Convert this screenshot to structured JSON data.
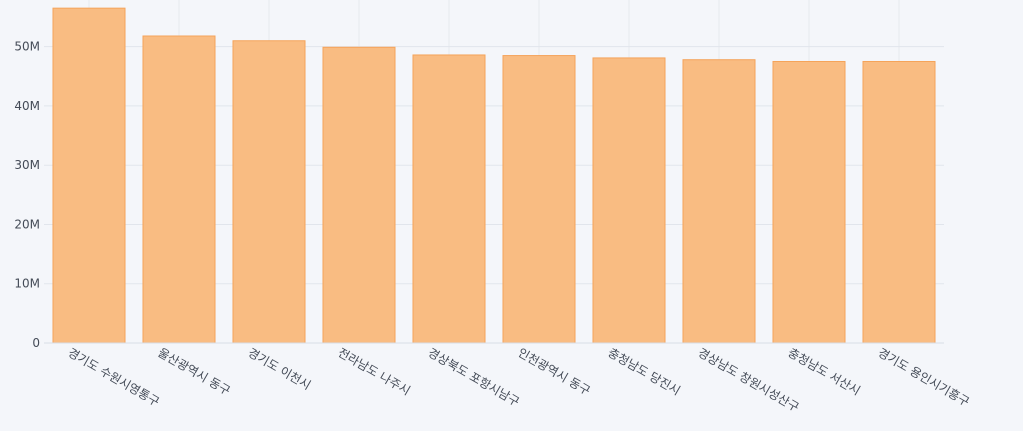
{
  "chart_data": {
    "type": "bar",
    "categories": [
      "경기도 수원시영통구",
      "울산광역시 동구",
      "경기도 이천시",
      "전라남도 나주시",
      "경상북도 포항시남구",
      "인천광역시 동구",
      "충청남도 당진시",
      "경상남도 창원시성산구",
      "충청남도 서산시",
      "경기도 용인시기흥구"
    ],
    "values": [
      56500000,
      51800000,
      51000000,
      49900000,
      48600000,
      48500000,
      48100000,
      47800000,
      47500000,
      47500000
    ],
    "ylim": [
      0,
      57200000
    ],
    "yticks": [
      0,
      10000000,
      20000000,
      30000000,
      40000000,
      50000000
    ],
    "ytick_labels": [
      "0",
      "10M",
      "20M",
      "30M",
      "40M",
      "50M"
    ],
    "title": "",
    "xlabel": "",
    "ylabel": "",
    "bar_color": "#f9bc82",
    "bar_edge_color": "#f5a35a",
    "grid": true,
    "legend": "none"
  }
}
